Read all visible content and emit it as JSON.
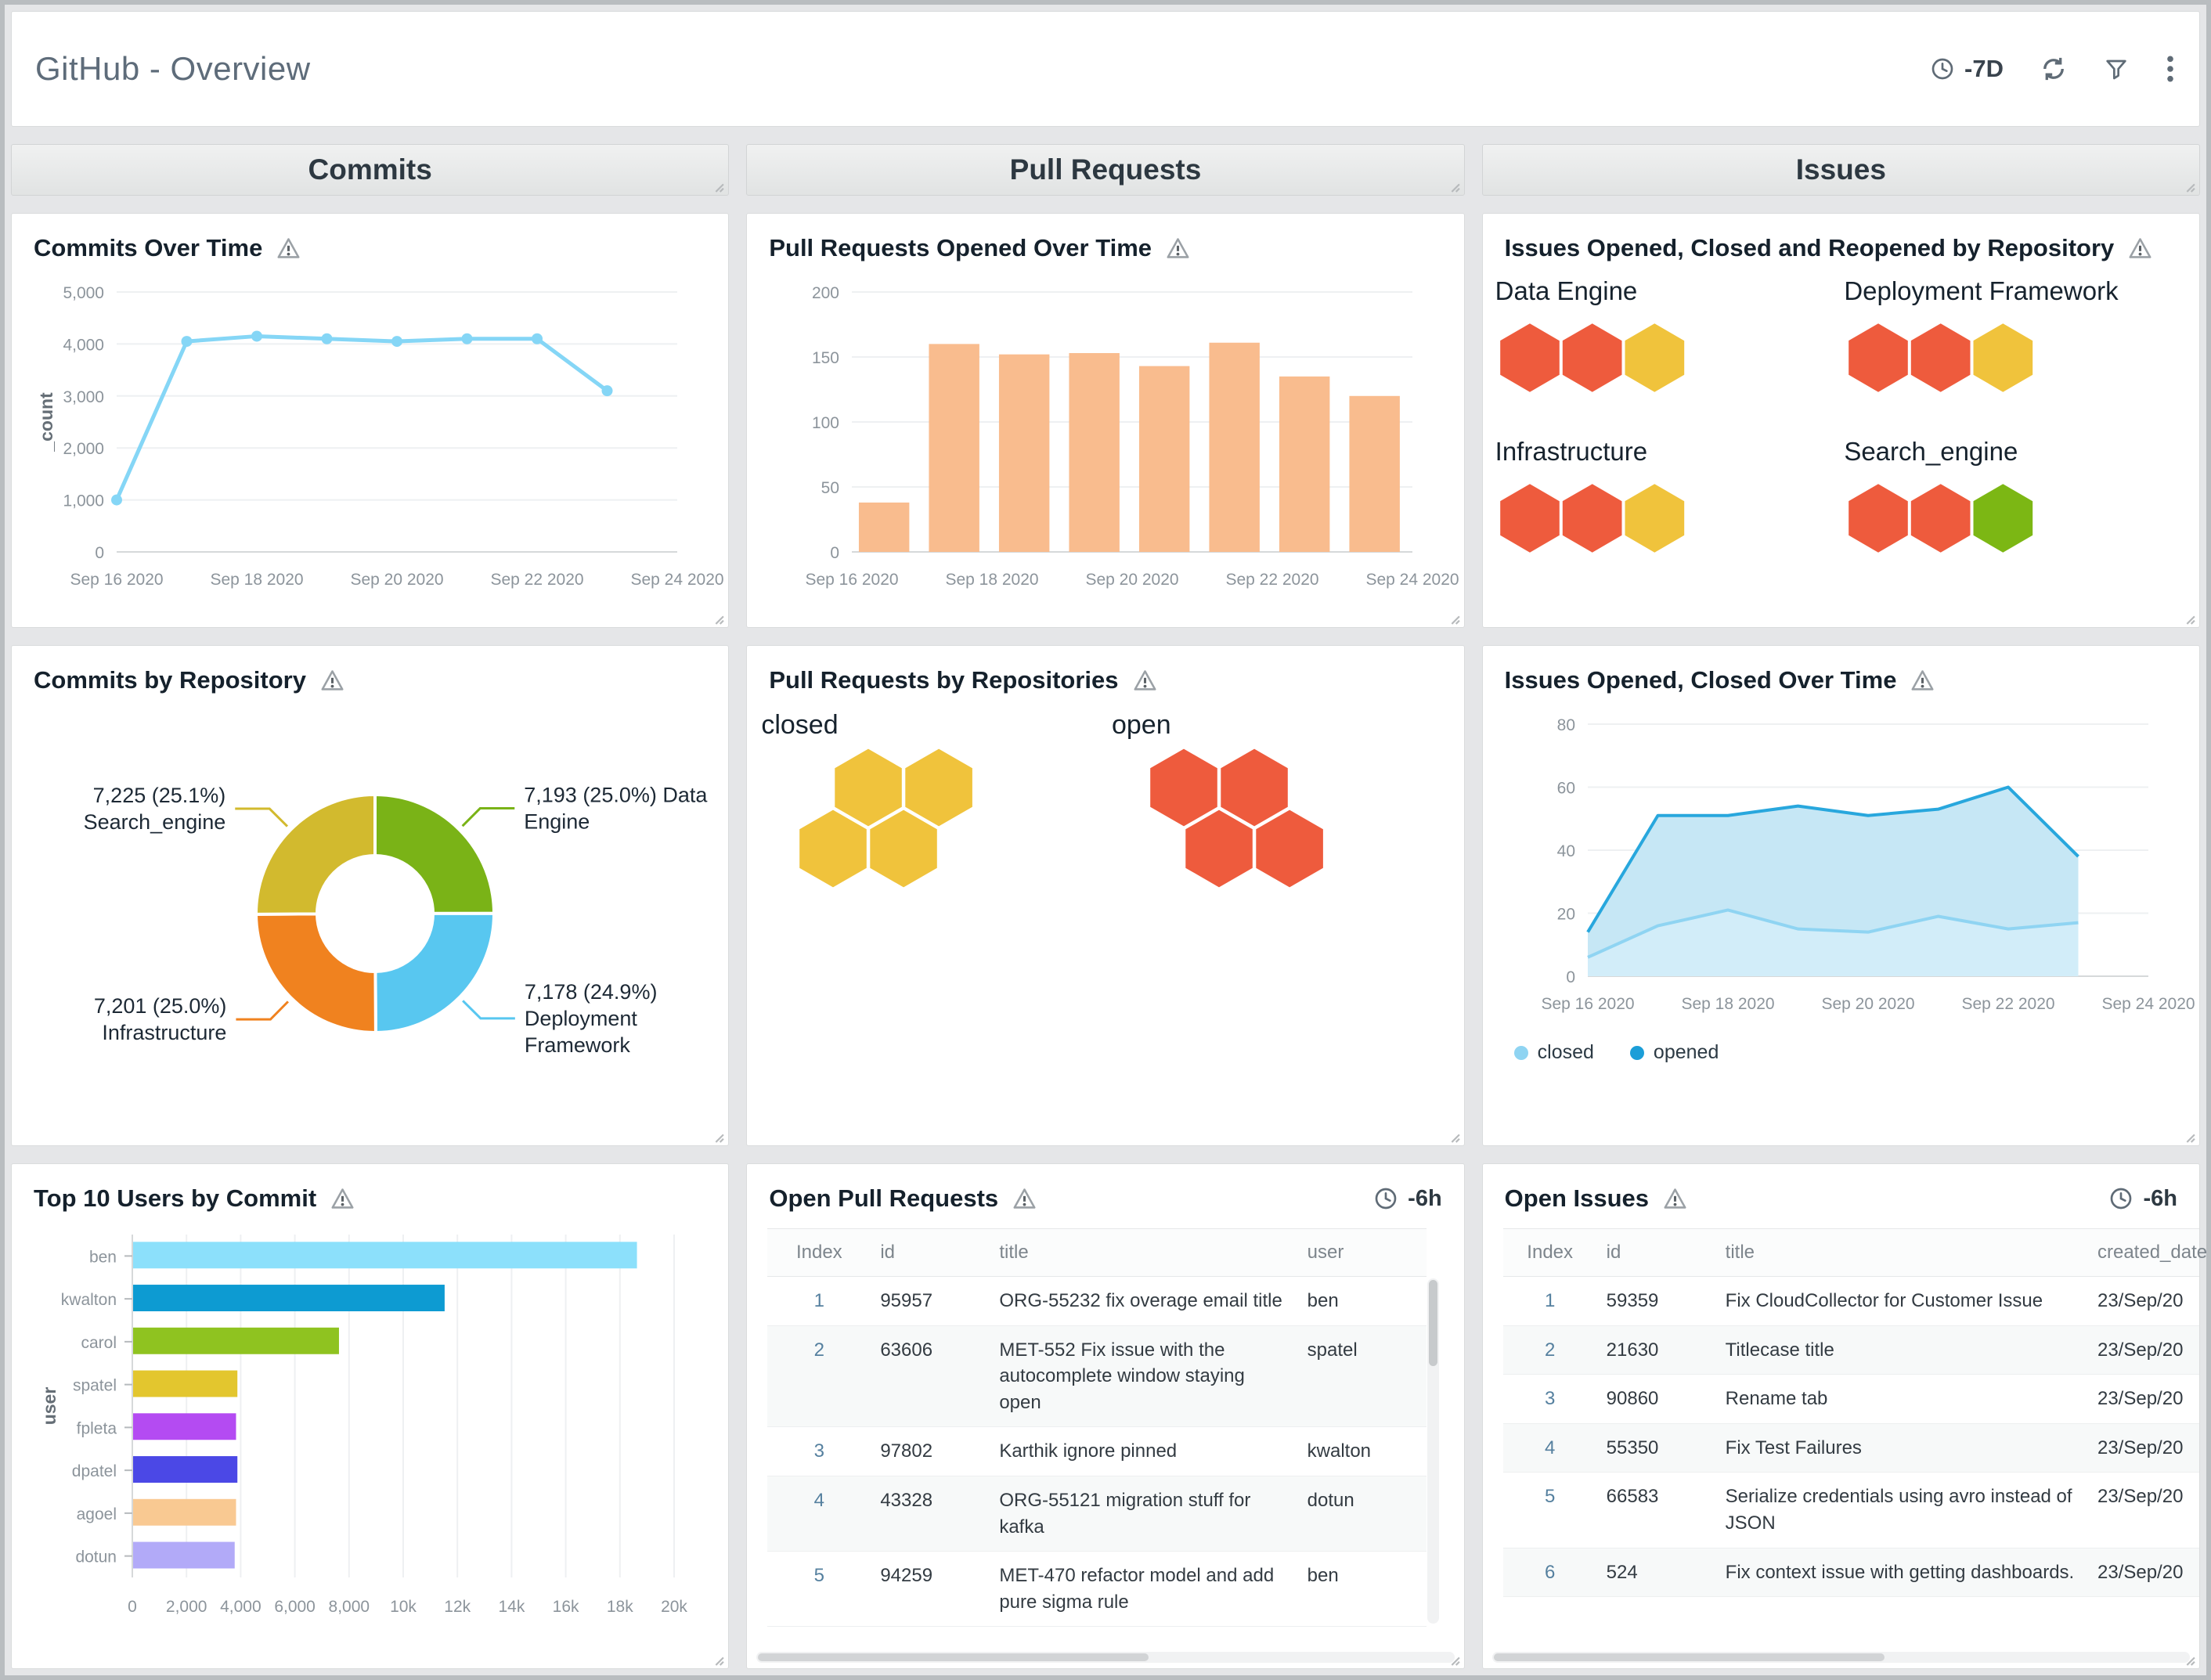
{
  "header": {
    "title": "GitHub - Overview",
    "time_range": "-7D"
  },
  "sections": {
    "commits": "Commits",
    "pull_requests": "Pull Requests",
    "issues": "Issues"
  },
  "panels": {
    "commits_over_time": {
      "title": "Commits Over Time"
    },
    "pr_opened_over_time": {
      "title": "Pull Requests Opened Over Time"
    },
    "issues_by_repo": {
      "title": "Issues Opened, Closed and Reopened by Repository"
    },
    "commits_by_repository": {
      "title": "Commits by Repository"
    },
    "pr_by_repositories": {
      "title": "Pull Requests by Repositories"
    },
    "issues_over_time": {
      "title": "Issues Opened, Closed Over Time"
    },
    "top_users_by_commit": {
      "title": "Top 10 Users by Commit"
    },
    "open_pull_requests": {
      "title": "Open Pull Requests",
      "time_range": "-6h"
    },
    "open_issues": {
      "title": "Open Issues",
      "time_range": "-6h"
    }
  },
  "chart_data": [
    {
      "id": "commits_over_time",
      "type": "line",
      "title": "Commits Over Time",
      "x": [
        "Sep 16 2020",
        "Sep 17 2020",
        "Sep 18 2020",
        "Sep 19 2020",
        "Sep 20 2020",
        "Sep 21 2020",
        "Sep 22 2020",
        "Sep 23 2020"
      ],
      "values": [
        1000,
        4050,
        4150,
        4100,
        4050,
        4100,
        4100,
        3100
      ],
      "xticks": [
        "Sep 16 2020",
        "Sep 18 2020",
        "Sep 20 2020",
        "Sep 22 2020",
        "Sep 24 2020"
      ],
      "xspan": 8,
      "ylim": [
        0,
        5000
      ],
      "yticks": [
        0,
        1000,
        2000,
        3000,
        4000,
        5000
      ],
      "ylabel": "_count",
      "color": "#85d6f6",
      "grid": true,
      "legend": "none"
    },
    {
      "id": "pr_opened_over_time",
      "type": "bar",
      "title": "Pull Requests Opened Over Time",
      "x": [
        "Sep 16 2020",
        "Sep 17 2020",
        "Sep 18 2020",
        "Sep 19 2020",
        "Sep 20 2020",
        "Sep 21 2020",
        "Sep 22 2020",
        "Sep 23 2020"
      ],
      "values": [
        38,
        160,
        152,
        153,
        143,
        161,
        135,
        120
      ],
      "xticks": [
        "Sep 16 2020",
        "Sep 18 2020",
        "Sep 20 2020",
        "Sep 22 2020",
        "Sep 24 2020"
      ],
      "xspan": 8,
      "ylim": [
        0,
        200
      ],
      "yticks": [
        0,
        50,
        100,
        150,
        200
      ],
      "ylabel": "",
      "color": "#f9bc8e",
      "grid": true,
      "legend": "none"
    },
    {
      "id": "issues_by_repo",
      "type": "honeycomb",
      "title": "Issues Opened, Closed and Reopened by Repository",
      "status_colors": {
        "red": "#ee5b3d",
        "yellow": "#f0c33c",
        "green": "#7cb714"
      },
      "groups": [
        {
          "label": "Data Engine",
          "cells": [
            "#ee5b3d",
            "#ee5b3d",
            "#f0c33c"
          ]
        },
        {
          "label": "Deployment Framework",
          "cells": [
            "#ee5b3d",
            "#ee5b3d",
            "#f0c33c"
          ]
        },
        {
          "label": "Infrastructure",
          "cells": [
            "#ee5b3d",
            "#ee5b3d",
            "#f0c33c"
          ]
        },
        {
          "label": "Search_engine",
          "cells": [
            "#ee5b3d",
            "#ee5b3d",
            "#7cb714"
          ]
        }
      ]
    },
    {
      "id": "commits_by_repository",
      "type": "donut",
      "title": "Commits by Repository",
      "slices": [
        {
          "name": "Data Engine",
          "value": 7193,
          "pct": "25.0%",
          "color": "#7ab317",
          "callout": [
            "7,193 (25.0%) Data",
            "Engine"
          ]
        },
        {
          "name": "Deployment Framework",
          "value": 7178,
          "pct": "24.9%",
          "color": "#58c7f0",
          "callout": [
            "7,178 (24.9%)",
            "Deployment",
            "Framework"
          ]
        },
        {
          "name": "Infrastructure",
          "value": 7201,
          "pct": "25.0%",
          "color": "#f0821f",
          "callout": [
            "7,201 (25.0%)",
            "Infrastructure"
          ]
        },
        {
          "name": "Search_engine",
          "value": 7225,
          "pct": "25.1%",
          "color": "#d2ba2e",
          "callout": [
            "7,225 (25.1%)",
            "Search_engine"
          ]
        }
      ]
    },
    {
      "id": "pr_by_repositories",
      "type": "honeycomb-cluster",
      "title": "Pull Requests by Repositories",
      "clusters": [
        {
          "label": "closed",
          "color": "#f0c33c",
          "count": 4,
          "cells": [
            [
              0.5,
              0
            ],
            [
              1.5,
              0
            ],
            [
              0,
              1
            ],
            [
              1,
              1
            ]
          ]
        },
        {
          "label": "open",
          "color": "#ee5b3d",
          "count": 4,
          "cells": [
            [
              0,
              0
            ],
            [
              1,
              0
            ],
            [
              0.5,
              1
            ],
            [
              1.5,
              1
            ]
          ]
        }
      ]
    },
    {
      "id": "issues_over_time",
      "type": "area",
      "title": "Issues Opened, Closed Over Time",
      "x": [
        "Sep 16 2020",
        "Sep 17 2020",
        "Sep 18 2020",
        "Sep 19 2020",
        "Sep 20 2020",
        "Sep 21 2020",
        "Sep 22 2020",
        "Sep 23 2020"
      ],
      "series": [
        {
          "name": "closed",
          "z": 1,
          "color": "#8fd4f2",
          "fill": "rgba(217,239,250,0.65)",
          "legend_color": "#8fd4f2",
          "values": [
            6,
            16,
            21,
            15,
            14,
            19,
            15,
            17
          ]
        },
        {
          "name": "opened",
          "z": 0,
          "color": "#28a7dd",
          "fill": "#c6e7f5",
          "legend_color": "#1b9ed8",
          "values": [
            14,
            51,
            51,
            54,
            51,
            53,
            60,
            38
          ]
        }
      ],
      "xticks": [
        "Sep 16 2020",
        "Sep 18 2020",
        "Sep 20 2020",
        "Sep 22 2020",
        "Sep 24 2020"
      ],
      "xspan": 8,
      "ylim": [
        0,
        80
      ],
      "yticks": [
        0,
        20,
        40,
        60,
        80
      ],
      "ylabel": "",
      "grid": true,
      "legend": "bottom-left"
    },
    {
      "id": "top_users_by_commit",
      "type": "hbar",
      "title": "Top 10 Users by Commit",
      "categories": [
        "ben",
        "kwalton",
        "carol",
        "spatel",
        "fpleta",
        "dpatel",
        "agoel",
        "dotun"
      ],
      "values": [
        18600,
        11500,
        7600,
        3850,
        3800,
        3850,
        3800,
        3750
      ],
      "colors": [
        "#8ce0fb",
        "#0d9bd2",
        "#8fc320",
        "#e3c62e",
        "#b44bf2",
        "#4b48e6",
        "#f9c992",
        "#b2aaf8"
      ],
      "xlim": [
        0,
        20000
      ],
      "xticks": [
        "0",
        "2,000",
        "4,000",
        "6,000",
        "8,000",
        "10k",
        "12k",
        "14k",
        "16k",
        "18k",
        "20k"
      ],
      "ylabel": "user",
      "grid": true,
      "legend": "none"
    }
  ],
  "tables": {
    "open_pull_requests": {
      "headers": [
        "Index",
        "id",
        "title",
        "user"
      ],
      "rows": [
        [
          "1",
          "95957",
          "ORG-55232 fix overage email title",
          "ben"
        ],
        [
          "2",
          "63606",
          "MET-552 Fix issue with the autocomplete window staying open",
          "spatel"
        ],
        [
          "3",
          "97802",
          "Karthik ignore pinned",
          "kwalton"
        ],
        [
          "4",
          "43328",
          "ORG-55121 migration stuff for kafka",
          "dotun"
        ],
        [
          "5",
          "94259",
          "MET-470 refactor model and add pure sigma rule",
          "ben"
        ]
      ]
    },
    "open_issues": {
      "headers": [
        "Index",
        "id",
        "title",
        "created_date"
      ],
      "rows": [
        [
          "1",
          "59359",
          "Fix CloudCollector for Customer Issue",
          "23/Sep/20"
        ],
        [
          "2",
          "21630",
          "Titlecase title",
          "23/Sep/20"
        ],
        [
          "3",
          "90860",
          "Rename tab",
          "23/Sep/20"
        ],
        [
          "4",
          "55350",
          "Fix Test Failures",
          "23/Sep/20"
        ],
        [
          "5",
          "66583",
          "Serialize credentials using avro instead of JSON",
          "23/Sep/20"
        ],
        [
          "6",
          "524",
          "Fix context issue with getting dashboards.",
          "23/Sep/20"
        ]
      ]
    }
  }
}
